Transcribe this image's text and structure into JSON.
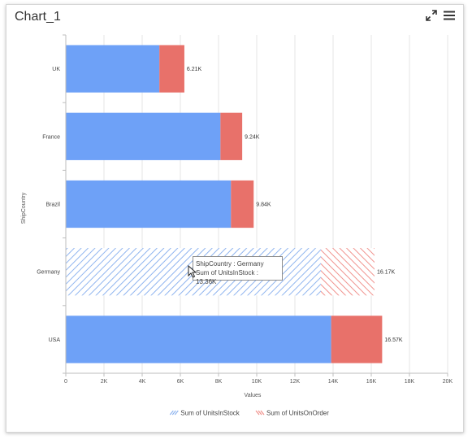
{
  "widget": {
    "title": "Chart_1",
    "expand_icon": "expand-icon",
    "menu_icon": "hamburger-menu-icon"
  },
  "colors": {
    "stock": "#6ea1f7",
    "order": "#e8716a",
    "stock_hatch": "#8fb4ef",
    "order_hatch": "#f0918c",
    "grid": "#e6e6e6",
    "axis": "#bdbdbd"
  },
  "tooltip": {
    "line1": "ShipCountry : Germany",
    "line2": "Sum of UnitsInStock : 13.36K"
  },
  "chart_data": {
    "type": "bar",
    "orientation": "horizontal",
    "stacked": true,
    "categories": [
      "UK",
      "France",
      "Brazil",
      "Germany",
      "USA"
    ],
    "series": [
      {
        "name": "Sum of UnitsInStock",
        "values": [
          4900,
          8100,
          8650,
          13360,
          13900
        ]
      },
      {
        "name": "Sum of UnitsOnOrder",
        "values": [
          1310,
          1140,
          1190,
          2810,
          2670
        ]
      }
    ],
    "totals_labels": [
      "6.21K",
      "9.24K",
      "9.84K",
      "16.17K",
      "16.57K"
    ],
    "xlabel": "Values",
    "ylabel": "ShipCountry",
    "xlim": [
      0,
      20000
    ],
    "xticks": [
      0,
      2000,
      4000,
      6000,
      8000,
      10000,
      12000,
      14000,
      16000,
      18000,
      20000
    ],
    "xtick_labels": [
      "0",
      "2K",
      "4K",
      "6K",
      "8K",
      "10K",
      "12K",
      "14K",
      "16K",
      "18K",
      "20K"
    ],
    "highlighted_category": "Germany",
    "grid": true,
    "legend_position": "bottom"
  }
}
